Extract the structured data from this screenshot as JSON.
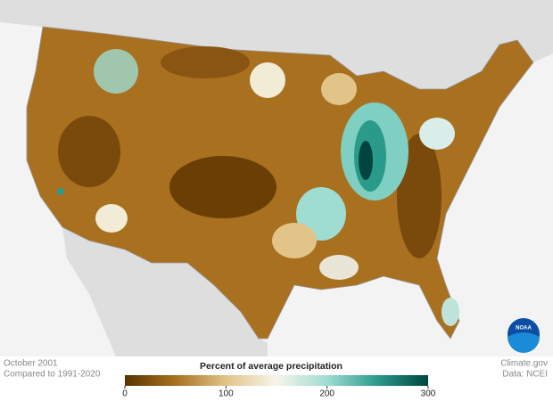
{
  "header": {
    "date": "October 2001",
    "baseline": "Compared to 1991-2020"
  },
  "credits": {
    "source": "Climate.gov",
    "data": "Data: NCEI",
    "logo": "NOAA"
  },
  "legend": {
    "title": "Percent of average precipitation",
    "lim": [
      0,
      300
    ],
    "ticks": [
      0,
      100,
      200,
      300
    ],
    "colors": [
      "#5a3400",
      "#a8701f",
      "#e2c489",
      "#f7f4ea",
      "#9fdcd2",
      "#2a9a8a",
      "#00463f"
    ]
  }
}
